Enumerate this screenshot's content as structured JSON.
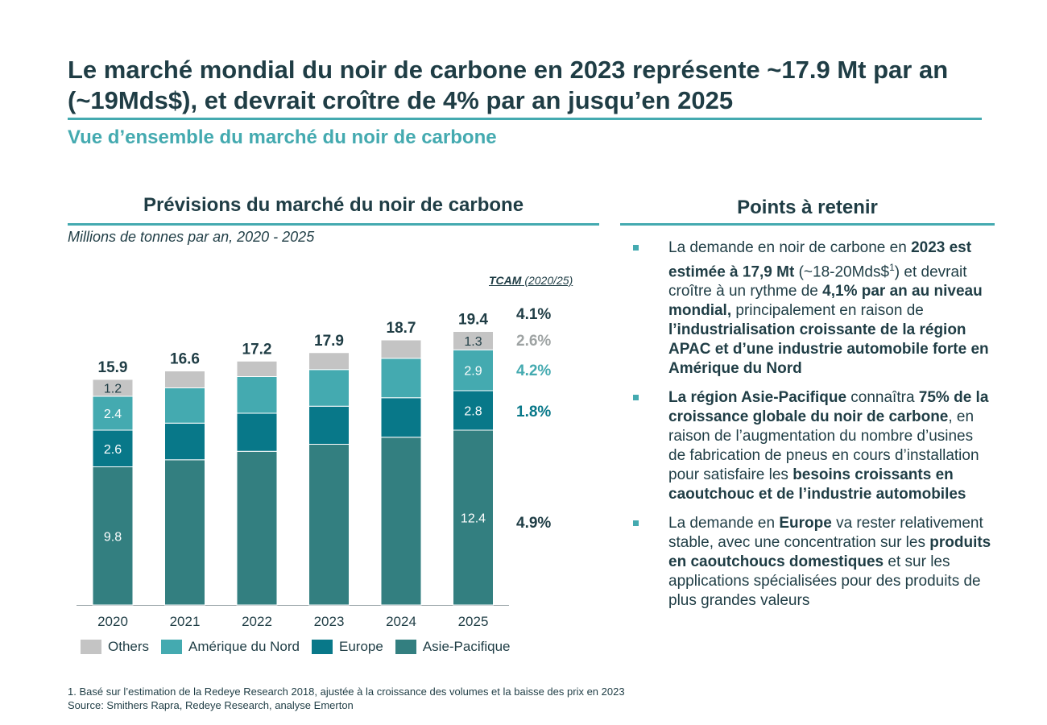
{
  "header": {
    "title": "Le marché mondial du noir de carbone en 2023 représente ~17.9 Mt par an (~19Mds$), et devrait croître de 4% par an jusqu’en 2025",
    "subtitle": "Vue d’ensemble du marché du noir de carbone"
  },
  "left_panel": {
    "title": "Prévisions du marché du noir de carbone",
    "units": "Millions de tonnes par an, 2020 - 2025",
    "tcam_label": "TCAM",
    "tcam_period": " (2020/25)",
    "tcam": [
      {
        "value": "4.1%",
        "color": "#1f3d45"
      },
      {
        "value": "2.6%",
        "color": "#9ea3a3"
      },
      {
        "value": "4.2%",
        "color": "#44aab0"
      },
      {
        "value": "1.8%",
        "color": "#087889"
      },
      {
        "value": "4.9%",
        "color": "#1f3d45"
      }
    ]
  },
  "right_panel": {
    "title": "Points à retenir",
    "bullets": [
      [
        {
          "t": "La demande en noir de carbone en "
        },
        {
          "t": "2023 est estimée à 17,9 Mt",
          "b": true
        },
        {
          "t": " (~18-20Mds$"
        },
        {
          "t": "1",
          "sup": true
        },
        {
          "t": ") et devrait croître à un rythme de "
        },
        {
          "t": "4,1% par an au niveau mondial,",
          "b": true
        },
        {
          "t": " principalement en raison de "
        },
        {
          "t": "l’industrialisation croissante de la région APAC et d’une industrie automobile forte en Amérique du Nord",
          "b": true
        }
      ],
      [
        {
          "t": "La région Asie-Pacifique",
          "b": true
        },
        {
          "t": " connaîtra "
        },
        {
          "t": "75% de la croissance globale du noir de carbone",
          "b": true
        },
        {
          "t": ", en raison de l’augmentation du nombre d’usines de fabrication de pneus en cours d’installation pour satisfaire les "
        },
        {
          "t": "besoins croissants en caoutchouc et de l’industrie automobiles",
          "b": true
        }
      ],
      [
        {
          "t": "La demande en "
        },
        {
          "t": "Europe",
          "b": true
        },
        {
          "t": " va rester relativement stable, avec une concentration sur les "
        },
        {
          "t": "produits en caoutchoucs domestiques",
          "b": true
        },
        {
          "t": " et sur les applications spécialisées pour des produits de plus grandes valeurs"
        }
      ]
    ]
  },
  "footnote": {
    "note": "1.  Basé sur l’estimation de la Redeye Research 2018, ajustée à la croissance des volumes et la baisse des prix en 2023",
    "source": "Source: Smithers Rapra, Redeye Research, analyse Emerton"
  },
  "chart_data": {
    "type": "bar",
    "stacked": true,
    "categories": [
      "2020",
      "2021",
      "2022",
      "2023",
      "2024",
      "2025"
    ],
    "totals": [
      15.9,
      16.6,
      17.2,
      17.9,
      18.7,
      19.4
    ],
    "ylim": [
      0,
      20
    ],
    "series": [
      {
        "name": "Asie-Pacifique",
        "color": "#337f80",
        "values": [
          9.8,
          10.3,
          10.9,
          11.4,
          11.9,
          12.4
        ],
        "labels": [
          "9.8",
          "",
          "",
          "",
          "",
          "12.4"
        ]
      },
      {
        "name": "Europe",
        "color": "#087889",
        "values": [
          2.6,
          2.6,
          2.7,
          2.7,
          2.8,
          2.8
        ],
        "labels": [
          "2.6",
          "",
          "",
          "",
          "",
          "2.8"
        ]
      },
      {
        "name": "Amérique du Nord",
        "color": "#44aab0",
        "values": [
          2.4,
          2.5,
          2.6,
          2.6,
          2.8,
          2.9
        ],
        "labels": [
          "2.4",
          "",
          "",
          "",
          "",
          "2.9"
        ]
      },
      {
        "name": "Others",
        "color": "#c4c4c4",
        "values": [
          1.2,
          1.2,
          1.1,
          1.2,
          1.3,
          1.3
        ],
        "labels": [
          "1.2",
          "",
          "",
          "",
          "",
          "1.3"
        ]
      }
    ],
    "legend": [
      "Others",
      "Amérique du Nord",
      "Europe",
      "Asie-Pacifique"
    ]
  }
}
